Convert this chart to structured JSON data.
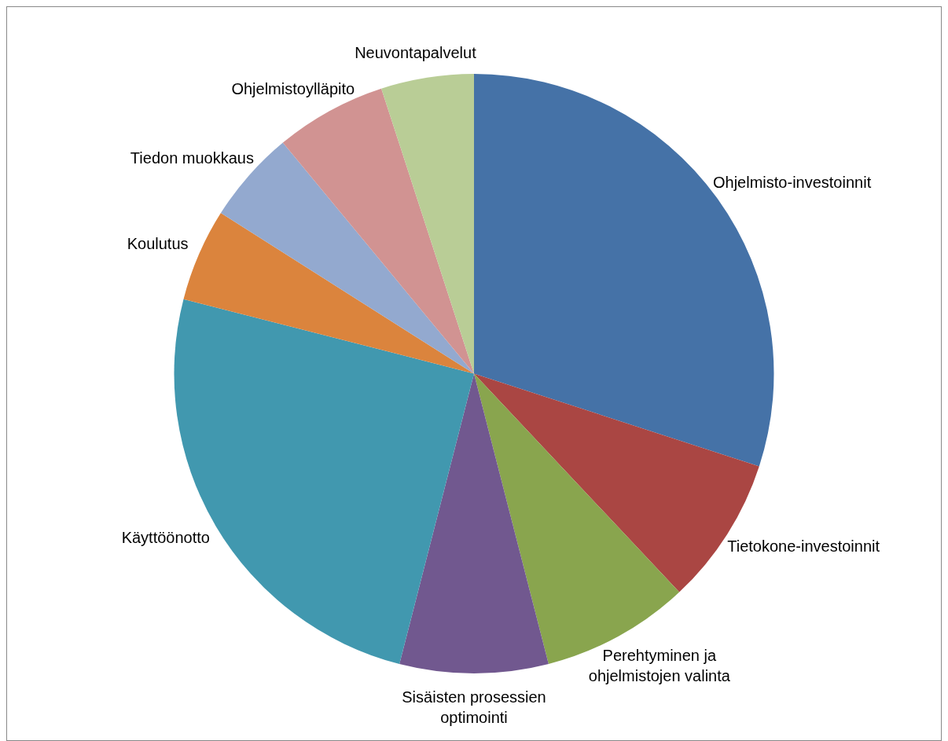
{
  "chart_data": {
    "type": "pie",
    "categories": [
      "Ohjelmisto-investoinnit",
      "Tietokone-investoinnit",
      "Perehtyminen ja ohjelmistojen valinta",
      "Sisäisten prosessien optimointi",
      "Käyttöönotto",
      "Koulutus",
      "Tiedon muokkaus",
      "Ohjelmistoylläpito",
      "Neuvontapalvelut"
    ],
    "values": [
      30,
      8,
      8,
      8,
      25,
      5,
      5,
      6,
      5
    ],
    "colors": [
      "#4572a7",
      "#aa4643",
      "#89a54e",
      "#71588f",
      "#4198af",
      "#db843d",
      "#93a9cf",
      "#d19392",
      "#b9cd96"
    ],
    "legend": false
  }
}
